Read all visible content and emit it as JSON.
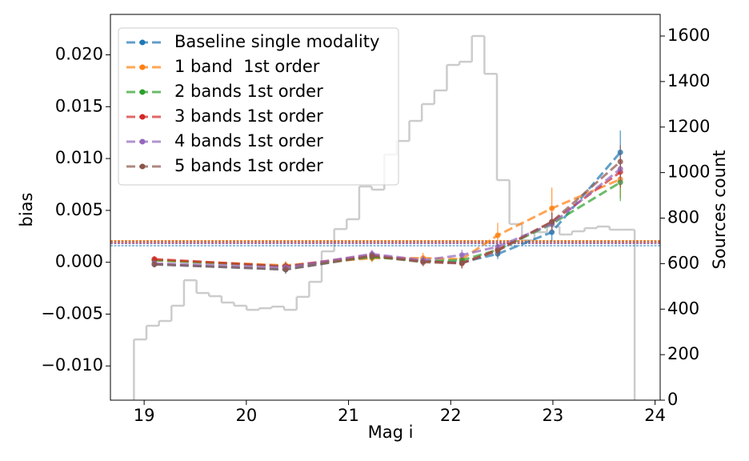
{
  "chart_data": {
    "type": "line",
    "xlabel": "Mag i",
    "ylabel": "bias",
    "y2label": "Sources count",
    "x": [
      19.1,
      20.385,
      21.23,
      21.73,
      22.11,
      22.46,
      22.99,
      23.66
    ],
    "series": [
      {
        "name": "Baseline single modality",
        "color": "#1f77b4",
        "values": [
          -0.0002,
          -0.0007,
          0.0006,
          0.0001,
          0.0,
          0.0008,
          0.0029,
          0.0106
        ],
        "errors": [
          0.0003,
          0.0004,
          0.0004,
          0.0004,
          0.0004,
          0.0005,
          0.0009,
          0.0021
        ],
        "mean": 0.0016
      },
      {
        "name": "1 band  1st order",
        "color": "#ff7f0e",
        "values": [
          0.0002,
          -0.0003,
          0.0004,
          0.0004,
          0.0003,
          0.0026,
          0.0052,
          0.008
        ],
        "errors": [
          0.0003,
          0.0004,
          0.0004,
          0.0005,
          0.0005,
          0.0012,
          0.002,
          0.0018
        ],
        "mean": 0.0021
      },
      {
        "name": "2 bands 1st order",
        "color": "#2ca02c",
        "values": [
          0.0002,
          -0.0004,
          0.0005,
          0.0001,
          0.0002,
          0.0012,
          0.0037,
          0.0077
        ],
        "errors": [
          0.0003,
          0.0004,
          0.0004,
          0.0004,
          0.0005,
          0.0006,
          0.0009,
          0.0018
        ],
        "mean": 0.0018
      },
      {
        "name": "3 bands 1st order",
        "color": "#d62728",
        "values": [
          0.0003,
          -0.0004,
          0.0007,
          0.0001,
          -0.0001,
          0.0012,
          0.0039,
          0.0087
        ],
        "errors": [
          0.0003,
          0.0004,
          0.0004,
          0.0004,
          0.0005,
          0.0006,
          0.0009,
          0.0015
        ],
        "mean": 0.0019
      },
      {
        "name": "4 bands 1st order",
        "color": "#9467bd",
        "values": [
          -0.0001,
          -0.0005,
          0.0008,
          0.0002,
          0.0007,
          0.0015,
          0.0037,
          0.009
        ],
        "errors": [
          0.0003,
          0.0004,
          0.0004,
          0.0004,
          0.0005,
          0.0006,
          0.0009,
          0.0015
        ],
        "mean": 0.0018
      },
      {
        "name": "5 bands 1st order",
        "color": "#8c564b",
        "values": [
          -0.0002,
          -0.0007,
          0.0006,
          0.0,
          -0.0001,
          0.0011,
          0.0039,
          0.0097
        ],
        "errors": [
          0.0003,
          0.0004,
          0.0004,
          0.0004,
          0.0005,
          0.0006,
          0.0009,
          0.0016
        ],
        "mean": 0.002
      }
    ],
    "histogram": {
      "axis": "y2",
      "color": "#cccccc",
      "bins": [
        18.9,
        19.0225,
        19.145,
        19.2675,
        19.39,
        19.5125,
        19.635,
        19.7575,
        19.88,
        20.0025,
        20.125,
        20.2475,
        20.37,
        20.4925,
        20.615,
        20.7375,
        20.86,
        20.9825,
        21.105,
        21.2275,
        21.35,
        21.4725,
        21.595,
        21.7175,
        21.84,
        21.9625,
        22.085,
        22.2075,
        22.33,
        22.4525,
        22.575,
        22.6975,
        22.82,
        22.9425,
        23.065,
        23.1875,
        23.31,
        23.4325,
        23.555,
        23.6775,
        23.8
      ],
      "counts": [
        267,
        327,
        348,
        415,
        527,
        471,
        457,
        429,
        415,
        397,
        404,
        411,
        397,
        454,
        520,
        654,
        752,
        795,
        939,
        925,
        1079,
        1139,
        1227,
        1301,
        1361,
        1473,
        1487,
        1600,
        1434,
        967,
        774,
        703,
        738,
        763,
        728,
        742,
        756,
        763,
        749,
        749
      ]
    },
    "xlim": [
      18.67,
      24.05
    ],
    "ylim": [
      -0.0133,
      0.0239
    ],
    "y2lim": [
      0,
      1695
    ],
    "xticks": [
      19,
      20,
      21,
      22,
      23,
      24
    ],
    "yticks": [
      {
        "value": -0.01,
        "label": "−0.010"
      },
      {
        "value": -0.005,
        "label": "−0.005"
      },
      {
        "value": 0,
        "label": "0.000"
      },
      0.005,
      {
        "value": 0.01,
        "label": "0.010"
      },
      0.015,
      {
        "value": 0.02,
        "label": "0.020"
      }
    ],
    "y2ticks": [
      0,
      200,
      400,
      600,
      800,
      1000,
      1200,
      1400,
      1600
    ],
    "legend": "upper left"
  }
}
